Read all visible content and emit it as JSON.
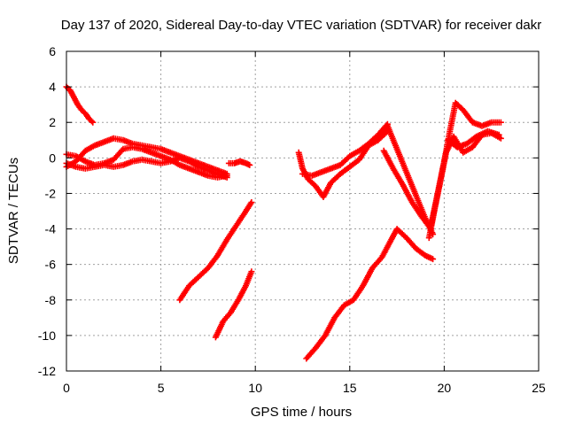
{
  "chart_data": {
    "type": "scatter",
    "title": "Day 137 of 2020, Sidereal Day-to-day VTEC variation (SDTVAR) for receiver dakr",
    "xlabel": "GPS time / hours",
    "ylabel": "SDTVAR / TECUs",
    "xlim": [
      0,
      25
    ],
    "ylim": [
      -12,
      6
    ],
    "xticks": [
      0,
      5,
      10,
      15,
      20,
      25
    ],
    "yticks": [
      -12,
      -10,
      -8,
      -6,
      -4,
      -2,
      0,
      2,
      4,
      6
    ],
    "xtick_labels": [
      "0",
      "5",
      "10",
      "15",
      "20",
      "25"
    ],
    "ytick_labels": [
      "-12",
      "-10",
      "-8",
      "-6",
      "-4",
      "-2",
      "0",
      "2",
      "4",
      "6"
    ],
    "grid": true,
    "marker": "+",
    "color": "#ff0000",
    "series": [
      {
        "name": "s1",
        "x": [
          0.0,
          0.2,
          0.4,
          0.6,
          0.8,
          1.0,
          1.2,
          1.4
        ],
        "y": [
          4.0,
          3.8,
          3.4,
          3.0,
          2.7,
          2.5,
          2.2,
          2.0
        ]
      },
      {
        "name": "s2",
        "x": [
          0.0,
          0.5,
          1.0,
          1.5,
          2.0,
          2.5,
          3.0,
          3.5,
          4.0,
          4.5,
          5.0,
          5.5,
          6.0,
          6.5,
          7.0,
          7.5,
          8.0,
          8.5
        ],
        "y": [
          -0.5,
          -0.2,
          0.4,
          0.7,
          0.9,
          1.1,
          1.0,
          0.8,
          0.7,
          0.6,
          0.5,
          0.3,
          0.1,
          -0.1,
          -0.3,
          -0.5,
          -0.7,
          -0.9
        ]
      },
      {
        "name": "s3",
        "x": [
          0.0,
          0.5,
          1.0,
          1.5,
          2.0,
          2.5,
          3.0,
          3.5,
          4.0,
          4.5,
          5.0,
          5.5,
          6.0,
          6.5,
          7.0,
          7.5,
          8.0,
          8.5
        ],
        "y": [
          0.2,
          0.1,
          -0.2,
          -0.4,
          -0.3,
          -0.1,
          0.5,
          0.6,
          0.5,
          0.3,
          0.1,
          -0.1,
          -0.4,
          -0.6,
          -0.8,
          -1.0,
          -1.1,
          -1.0
        ]
      },
      {
        "name": "s4",
        "x": [
          0.0,
          0.5,
          1.0,
          1.5,
          2.0,
          2.5,
          3.0,
          3.5,
          4.0,
          4.5,
          5.0,
          5.5,
          6.0,
          6.5,
          7.0,
          7.5,
          8.0,
          8.5
        ],
        "y": [
          -0.3,
          -0.5,
          -0.6,
          -0.5,
          -0.4,
          -0.5,
          -0.4,
          -0.2,
          -0.1,
          -0.2,
          -0.3,
          -0.2,
          0.0,
          -0.2,
          -0.5,
          -0.7,
          -0.9,
          -1.1
        ]
      },
      {
        "name": "s5",
        "x": [
          8.6,
          8.9,
          9.2,
          9.5,
          9.7
        ],
        "y": [
          -0.3,
          -0.3,
          -0.2,
          -0.3,
          -0.4
        ]
      },
      {
        "name": "s6",
        "x": [
          6.0,
          6.5,
          7.0,
          7.5,
          8.0,
          8.5,
          9.0,
          9.5,
          9.8
        ],
        "y": [
          -8.0,
          -7.2,
          -6.7,
          -6.2,
          -5.5,
          -4.6,
          -3.8,
          -3.0,
          -2.5
        ]
      },
      {
        "name": "s7",
        "x": [
          7.9,
          8.3,
          8.7,
          9.1,
          9.5,
          9.8
        ],
        "y": [
          -10.1,
          -9.2,
          -8.7,
          -8.0,
          -7.2,
          -6.4
        ]
      },
      {
        "name": "s8",
        "x": [
          12.3,
          12.5,
          12.8,
          13.2,
          13.6,
          14.0,
          14.5,
          15.0,
          15.5,
          16.0,
          16.5,
          17.0
        ],
        "y": [
          0.3,
          -0.6,
          -1.2,
          -1.6,
          -2.2,
          -1.4,
          -0.9,
          -0.5,
          -0.1,
          0.7,
          1.0,
          1.5
        ]
      },
      {
        "name": "s9",
        "x": [
          12.5,
          13.0,
          13.5,
          14.0,
          14.5,
          15.0,
          15.5,
          16.0,
          16.5,
          17.0
        ],
        "y": [
          -0.9,
          -1.0,
          -0.8,
          -0.6,
          -0.4,
          0.1,
          0.4,
          0.8,
          1.3,
          1.9
        ]
      },
      {
        "name": "s10",
        "x": [
          16.5,
          17.0,
          17.5,
          18.0,
          18.5,
          19.0,
          19.4
        ],
        "y": [
          1.0,
          1.8,
          0.5,
          -0.8,
          -2.1,
          -3.4,
          -4.3
        ]
      },
      {
        "name": "s11",
        "x": [
          16.8,
          17.3,
          17.8,
          18.3,
          18.8,
          19.3
        ],
        "y": [
          0.4,
          -0.6,
          -1.5,
          -2.5,
          -3.3,
          -4.0
        ]
      },
      {
        "name": "s12",
        "x": [
          19.2,
          19.6,
          20.0,
          20.3,
          20.6,
          21.0,
          21.5,
          22.0,
          22.5,
          23.0
        ],
        "y": [
          -4.5,
          -2.3,
          -0.2,
          1.5,
          3.1,
          2.7,
          2.0,
          1.8,
          2.0,
          2.0
        ]
      },
      {
        "name": "s13",
        "x": [
          19.3,
          19.7,
          20.1,
          20.5,
          21.0,
          21.5,
          22.0,
          22.5,
          23.0
        ],
        "y": [
          -3.8,
          -1.8,
          0.3,
          1.2,
          0.3,
          0.6,
          1.3,
          1.4,
          1.1
        ]
      },
      {
        "name": "s14",
        "x": [
          20.2,
          20.7,
          21.2,
          21.7,
          22.3,
          22.9
        ],
        "y": [
          1.0,
          0.6,
          0.8,
          1.2,
          1.5,
          1.3
        ]
      },
      {
        "name": "s15",
        "x": [
          12.7,
          13.2,
          13.7,
          14.2,
          14.7,
          15.2,
          15.7,
          16.2,
          16.7,
          17.2,
          17.5,
          18.0,
          18.5,
          19.0,
          19.4
        ],
        "y": [
          -11.3,
          -10.7,
          -10.0,
          -9.0,
          -8.3,
          -8.0,
          -7.2,
          -6.2,
          -5.6,
          -4.6,
          -4.0,
          -4.5,
          -5.1,
          -5.5,
          -5.7
        ]
      }
    ]
  }
}
